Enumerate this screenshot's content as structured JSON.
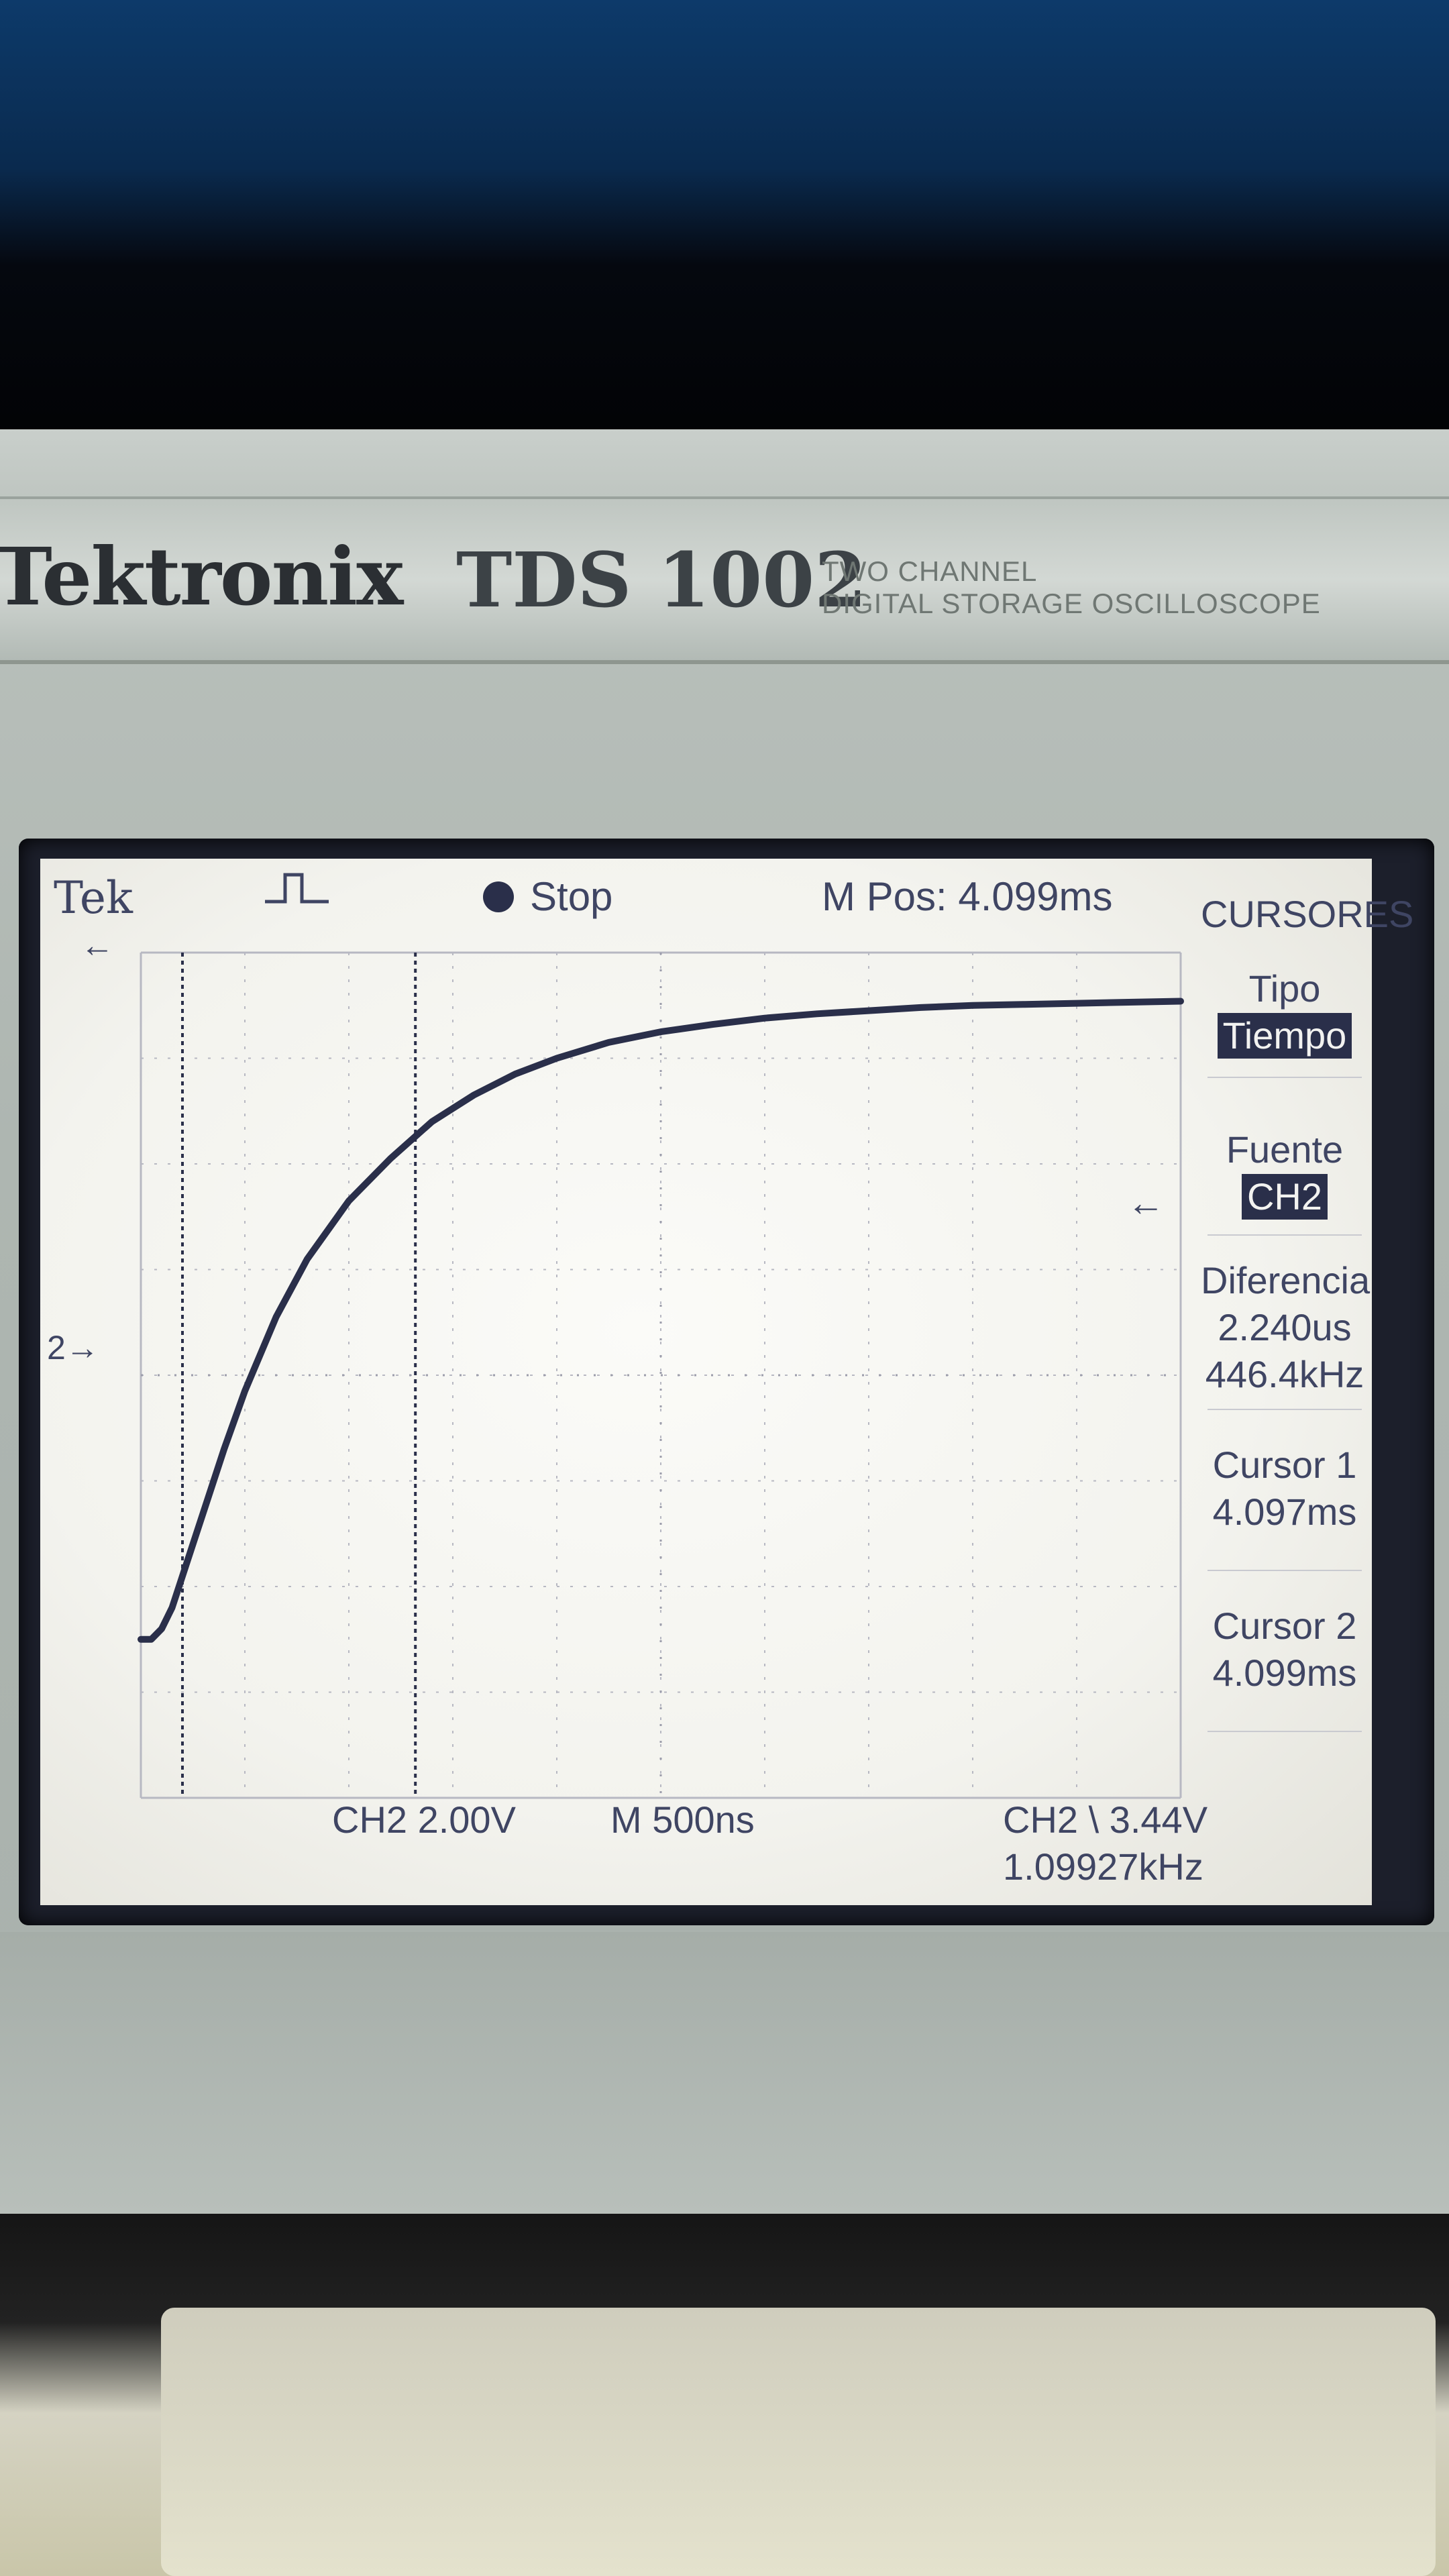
{
  "device": {
    "brand": "Tektronix",
    "model": "TDS 1002",
    "tagline_line1": "TWO CHANNEL",
    "tagline_line2": "DIGITAL STORAGE OSCILLOSCOPE"
  },
  "status_bar": {
    "logo": "Tek",
    "acq_state": "Stop",
    "m_pos": "M Pos: 4.099ms"
  },
  "channel_marker": "2",
  "menu": {
    "title": "CURSORES",
    "tipo_label": "Tipo",
    "tipo_value": "Tiempo",
    "fuente_label": "Fuente",
    "fuente_value": "CH2",
    "diferencia_label": "Diferencia",
    "diferencia_value1": "2.240us",
    "diferencia_value2": "446.4kHz",
    "cursor1_label": "Cursor 1",
    "cursor1_value": "4.097ms",
    "cursor2_label": "Cursor 2",
    "cursor2_value": "4.099ms"
  },
  "readout": {
    "ch2_scale": "CH2  2.00V",
    "timebase": "M 500ns",
    "trigger": "CH2 \\ 3.44V",
    "frequency": "1.09927kHz"
  },
  "colors": {
    "trace": "#2a2f4a",
    "screen_text": "#3f4563"
  },
  "chart_data": {
    "type": "line",
    "xlim": [
      0,
      10
    ],
    "ylim": [
      0,
      8
    ],
    "grid": true,
    "cursors_x": [
      0.4,
      2.64
    ],
    "series": [
      {
        "x": [
          0.0,
          0.1,
          0.2,
          0.3,
          0.4,
          0.6,
          0.8,
          1.0,
          1.3,
          1.6,
          2.0,
          2.4,
          2.8,
          3.2,
          3.6,
          4.0,
          4.5,
          5.0,
          5.5,
          6.0,
          6.5,
          7.0,
          7.5,
          8.0,
          8.5,
          9.0,
          9.5,
          10.0
        ],
        "y": [
          1.5,
          1.5,
          1.6,
          1.8,
          2.1,
          2.7,
          3.3,
          3.85,
          4.55,
          5.1,
          5.65,
          6.05,
          6.4,
          6.65,
          6.85,
          7.0,
          7.15,
          7.25,
          7.32,
          7.38,
          7.42,
          7.45,
          7.48,
          7.5,
          7.51,
          7.52,
          7.53,
          7.54
        ]
      }
    ]
  }
}
